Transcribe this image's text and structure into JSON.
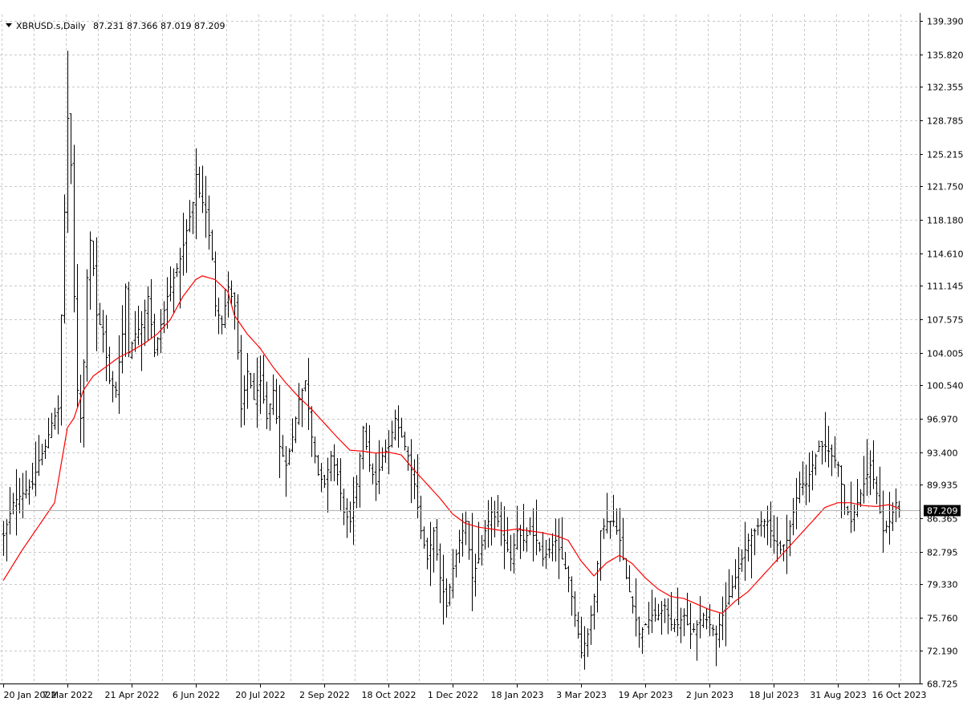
{
  "header": {
    "symbol": "XBRUSD.s,Daily",
    "ohlc": "87.231 87.366 87.019 87.209"
  },
  "colors": {
    "background": "#ffffff",
    "grid": "#c8c8c8",
    "bars": "#000000",
    "moving_average": "#ff0000",
    "current_price_label_bg": "#000000",
    "current_price_label_fg": "#ffffff"
  },
  "chart_data": {
    "type": "line",
    "title": "XBRUSD.s,Daily",
    "ylim": [
      68.725,
      139.39
    ],
    "grid": true,
    "y_ticks": [
      "139.390",
      "135.820",
      "132.355",
      "128.785",
      "125.215",
      "121.750",
      "118.180",
      "114.610",
      "111.145",
      "107.575",
      "104.005",
      "100.540",
      "96.970",
      "93.400",
      "89.935",
      "86.365",
      "82.795",
      "79.330",
      "75.760",
      "72.190",
      "68.725"
    ],
    "x_ticks": [
      "20 Jan 2022",
      "7 Mar 2022",
      "21 Apr 2022",
      "6 Jun 2022",
      "20 Jul 2022",
      "2 Sep 2022",
      "18 Oct 2022",
      "1 Dec 2022",
      "18 Jan 2023",
      "3 Mar 2023",
      "19 Apr 2023",
      "2 Jun 2023",
      "18 Jul 2023",
      "31 Aug 2023",
      "16 Oct 2023"
    ],
    "x_tick_index": [
      0,
      20,
      40,
      60,
      80,
      100,
      120,
      140,
      160,
      180,
      200,
      220,
      240,
      260,
      279
    ],
    "current_price": "87.209",
    "series": [
      {
        "kind": "ohlc-bars",
        "anchors_note": "",
        "close_anchors": [
          [
            0,
            84.5
          ],
          [
            3,
            88
          ],
          [
            6,
            89
          ],
          [
            9,
            90
          ],
          [
            11,
            92.5
          ],
          [
            13,
            94
          ],
          [
            15,
            96.5
          ],
          [
            17,
            98
          ],
          [
            18,
            108
          ],
          [
            19,
            119
          ],
          [
            20,
            129
          ],
          [
            21,
            124
          ],
          [
            22,
            110
          ],
          [
            23,
            100
          ],
          [
            24,
            97
          ],
          [
            25,
            103
          ],
          [
            26,
            112
          ],
          [
            27,
            116
          ],
          [
            28,
            113
          ],
          [
            29,
            108
          ],
          [
            31,
            106
          ],
          [
            33,
            101
          ],
          [
            35,
            100
          ],
          [
            37,
            106
          ],
          [
            38,
            111
          ],
          [
            39,
            104
          ],
          [
            41,
            106
          ],
          [
            43,
            107
          ],
          [
            45,
            110
          ],
          [
            47,
            104
          ],
          [
            49,
            107
          ],
          [
            51,
            110
          ],
          [
            53,
            112
          ],
          [
            55,
            114
          ],
          [
            57,
            117
          ],
          [
            59,
            120
          ],
          [
            60,
            123
          ],
          [
            61,
            121
          ],
          [
            63,
            119
          ],
          [
            65,
            114
          ],
          [
            66,
            109
          ],
          [
            68,
            107
          ],
          [
            70,
            111
          ],
          [
            72,
            109
          ],
          [
            73,
            104
          ],
          [
            74,
            98
          ],
          [
            76,
            102
          ],
          [
            78,
            99
          ],
          [
            80,
            101
          ],
          [
            82,
            97
          ],
          [
            84,
            100
          ],
          [
            86,
            94
          ],
          [
            88,
            92
          ],
          [
            90,
            95
          ],
          [
            92,
            99
          ],
          [
            94,
            101
          ],
          [
            96,
            95
          ],
          [
            98,
            91
          ],
          [
            100,
            90
          ],
          [
            102,
            93
          ],
          [
            104,
            91
          ],
          [
            106,
            87
          ],
          [
            108,
            86
          ],
          [
            110,
            90
          ],
          [
            112,
            96
          ],
          [
            114,
            92
          ],
          [
            116,
            90
          ],
          [
            118,
            93
          ],
          [
            120,
            94
          ],
          [
            122,
            97
          ],
          [
            124,
            95
          ],
          [
            126,
            93
          ],
          [
            128,
            90
          ],
          [
            130,
            85
          ],
          [
            132,
            82
          ],
          [
            134,
            85
          ],
          [
            136,
            80
          ],
          [
            138,
            77
          ],
          [
            140,
            81
          ],
          [
            142,
            84
          ],
          [
            144,
            86
          ],
          [
            146,
            80
          ],
          [
            148,
            82
          ],
          [
            150,
            85
          ],
          [
            152,
            87
          ],
          [
            154,
            86
          ],
          [
            156,
            84
          ],
          [
            158,
            82
          ],
          [
            160,
            85
          ],
          [
            162,
            84
          ],
          [
            164,
            85
          ],
          [
            166,
            84
          ],
          [
            168,
            82
          ],
          [
            170,
            83
          ],
          [
            172,
            84
          ],
          [
            174,
            82
          ],
          [
            176,
            80
          ],
          [
            178,
            76
          ],
          [
            180,
            72
          ],
          [
            182,
            74
          ],
          [
            184,
            78
          ],
          [
            186,
            85
          ],
          [
            188,
            86
          ],
          [
            190,
            86
          ],
          [
            192,
            84
          ],
          [
            194,
            80
          ],
          [
            196,
            77
          ],
          [
            198,
            74
          ],
          [
            200,
            75
          ],
          [
            202,
            76
          ],
          [
            204,
            76
          ],
          [
            206,
            77
          ],
          [
            208,
            75
          ],
          [
            210,
            75
          ],
          [
            212,
            76
          ],
          [
            214,
            74
          ],
          [
            216,
            75
          ],
          [
            218,
            76
          ],
          [
            220,
            75
          ],
          [
            222,
            74
          ],
          [
            224,
            76
          ],
          [
            226,
            78
          ],
          [
            228,
            80
          ],
          [
            230,
            82
          ],
          [
            232,
            84
          ],
          [
            234,
            85
          ],
          [
            236,
            86
          ],
          [
            238,
            86
          ],
          [
            240,
            84
          ],
          [
            242,
            83
          ],
          [
            244,
            84
          ],
          [
            246,
            87
          ],
          [
            248,
            90
          ],
          [
            250,
            90
          ],
          [
            252,
            92
          ],
          [
            254,
            94
          ],
          [
            256,
            94
          ],
          [
            258,
            93
          ],
          [
            260,
            92
          ],
          [
            262,
            88
          ],
          [
            264,
            86
          ],
          [
            266,
            88
          ],
          [
            268,
            90
          ],
          [
            270,
            92
          ],
          [
            272,
            89
          ],
          [
            274,
            85
          ],
          [
            276,
            86
          ],
          [
            278,
            88
          ],
          [
            279,
            87.209
          ]
        ]
      },
      {
        "kind": "moving-average",
        "anchors": [
          [
            0,
            79.7
          ],
          [
            6,
            83
          ],
          [
            12,
            86
          ],
          [
            16,
            88
          ],
          [
            18,
            92
          ],
          [
            20,
            96
          ],
          [
            22,
            97
          ],
          [
            25,
            100
          ],
          [
            28,
            101.5
          ],
          [
            32,
            102.5
          ],
          [
            36,
            103.5
          ],
          [
            40,
            104.2
          ],
          [
            44,
            105
          ],
          [
            48,
            106
          ],
          [
            52,
            107.5
          ],
          [
            56,
            110
          ],
          [
            60,
            111.8
          ],
          [
            62,
            112.2
          ],
          [
            66,
            111.8
          ],
          [
            70,
            110.5
          ],
          [
            72,
            108
          ],
          [
            76,
            106
          ],
          [
            80,
            104.5
          ],
          [
            84,
            102.5
          ],
          [
            88,
            100.8
          ],
          [
            92,
            99.3
          ],
          [
            96,
            98
          ],
          [
            100,
            96.5
          ],
          [
            104,
            95
          ],
          [
            108,
            93.6
          ],
          [
            112,
            93.5
          ],
          [
            116,
            93.3
          ],
          [
            120,
            93.4
          ],
          [
            124,
            93.1
          ],
          [
            128,
            91.5
          ],
          [
            132,
            90
          ],
          [
            136,
            88.5
          ],
          [
            140,
            86.8
          ],
          [
            144,
            85.8
          ],
          [
            148,
            85.4
          ],
          [
            152,
            85.2
          ],
          [
            156,
            85
          ],
          [
            160,
            85.2
          ],
          [
            164,
            85
          ],
          [
            168,
            84.8
          ],
          [
            172,
            84.5
          ],
          [
            176,
            84
          ],
          [
            180,
            81.8
          ],
          [
            184,
            80.2
          ],
          [
            188,
            81.6
          ],
          [
            192,
            82.4
          ],
          [
            196,
            81.5
          ],
          [
            200,
            80
          ],
          [
            204,
            78.8
          ],
          [
            208,
            78
          ],
          [
            212,
            77.8
          ],
          [
            216,
            77.2
          ],
          [
            220,
            76.6
          ],
          [
            224,
            76.2
          ],
          [
            228,
            77.5
          ],
          [
            232,
            78.5
          ],
          [
            236,
            80
          ],
          [
            240,
            81.5
          ],
          [
            244,
            83
          ],
          [
            248,
            84.5
          ],
          [
            252,
            86
          ],
          [
            256,
            87.5
          ],
          [
            260,
            88
          ],
          [
            264,
            88
          ],
          [
            268,
            87.7
          ],
          [
            272,
            87.6
          ],
          [
            276,
            87.8
          ],
          [
            279,
            87.4
          ]
        ]
      }
    ]
  }
}
